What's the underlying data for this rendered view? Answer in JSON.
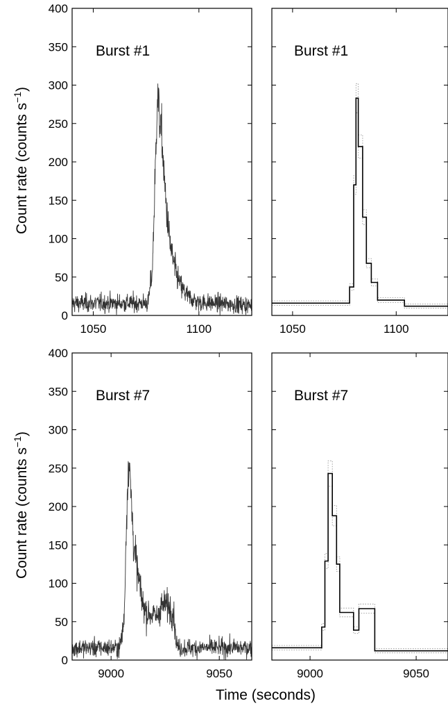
{
  "figure": {
    "ylabel_main": "Count rate (counts s",
    "ylabel_sup": "−1",
    "ylabel_close": ")",
    "xlabel": "Time (seconds)"
  },
  "chart_data": [
    {
      "id": "burst1-lightcurve",
      "type": "line",
      "label": "Burst #1",
      "xlim": [
        1040,
        1125
      ],
      "ylim": [
        0,
        400
      ],
      "xticks": [
        1050,
        1100
      ],
      "yticks": [
        0,
        50,
        100,
        150,
        200,
        250,
        300,
        350,
        400
      ],
      "background": 16,
      "anchors": [
        [
          1040,
          16
        ],
        [
          1076,
          16
        ],
        [
          1078,
          60
        ],
        [
          1079.5,
          200
        ],
        [
          1080.3,
          290
        ],
        [
          1081.2,
          262
        ],
        [
          1082.5,
          230
        ],
        [
          1084,
          160
        ],
        [
          1086,
          100
        ],
        [
          1088,
          68
        ],
        [
          1090,
          48
        ],
        [
          1092,
          35
        ],
        [
          1095,
          24
        ],
        [
          1100,
          17
        ],
        [
          1125,
          13
        ]
      ]
    },
    {
      "id": "burst1-blocks",
      "type": "line",
      "label": "Burst #1",
      "xlim": [
        1040,
        1125
      ],
      "ylim": [
        0,
        400
      ],
      "xticks": [
        1050,
        1100
      ],
      "blocks": [
        [
          1040,
          1077.5,
          16
        ],
        [
          1077.5,
          1079.5,
          37
        ],
        [
          1079.5,
          1080.6,
          170
        ],
        [
          1080.6,
          1081.7,
          283
        ],
        [
          1081.7,
          1083.8,
          220
        ],
        [
          1083.8,
          1085.6,
          128
        ],
        [
          1085.6,
          1088.0,
          68
        ],
        [
          1088.0,
          1091.0,
          43
        ],
        [
          1091.0,
          1104.0,
          20
        ],
        [
          1104.0,
          1125,
          12
        ]
      ]
    },
    {
      "id": "burst7-lightcurve",
      "type": "line",
      "label": "Burst #7",
      "xlim": [
        8982,
        9065
      ],
      "ylim": [
        0,
        400
      ],
      "xticks": [
        9000,
        9050
      ],
      "yticks": [
        0,
        50,
        100,
        150,
        200,
        250,
        300,
        350,
        400
      ],
      "background": 16,
      "anchors": [
        [
          8982,
          16
        ],
        [
          9004,
          16
        ],
        [
          9006,
          50
        ],
        [
          9007.3,
          205
        ],
        [
          9008.2,
          265
        ],
        [
          9009.2,
          215
        ],
        [
          9010.5,
          150
        ],
        [
          9012.5,
          110
        ],
        [
          9014.5,
          75
        ],
        [
          9016.5,
          60
        ],
        [
          9019,
          60
        ],
        [
          9021,
          55
        ],
        [
          9023,
          70
        ],
        [
          9025.5,
          72
        ],
        [
          9027.5,
          68
        ],
        [
          9029,
          60
        ],
        [
          9030,
          25
        ],
        [
          9031,
          16
        ],
        [
          9065,
          16
        ]
      ]
    },
    {
      "id": "burst7-blocks",
      "type": "line",
      "label": "Burst #7",
      "xlim": [
        8982,
        9065
      ],
      "ylim": [
        0,
        400
      ],
      "xticks": [
        9000,
        9050
      ],
      "blocks": [
        [
          8982,
          9005.5,
          16
        ],
        [
          9005.5,
          9007.0,
          43
        ],
        [
          9007.0,
          9008.5,
          129
        ],
        [
          9008.5,
          9010.5,
          243
        ],
        [
          9010.5,
          9012.5,
          188
        ],
        [
          9012.5,
          9014.0,
          125
        ],
        [
          9014.0,
          9020.5,
          62
        ],
        [
          9020.5,
          9023.0,
          39
        ],
        [
          9023.0,
          9030.5,
          67
        ],
        [
          9030.5,
          9065,
          12
        ]
      ]
    }
  ]
}
